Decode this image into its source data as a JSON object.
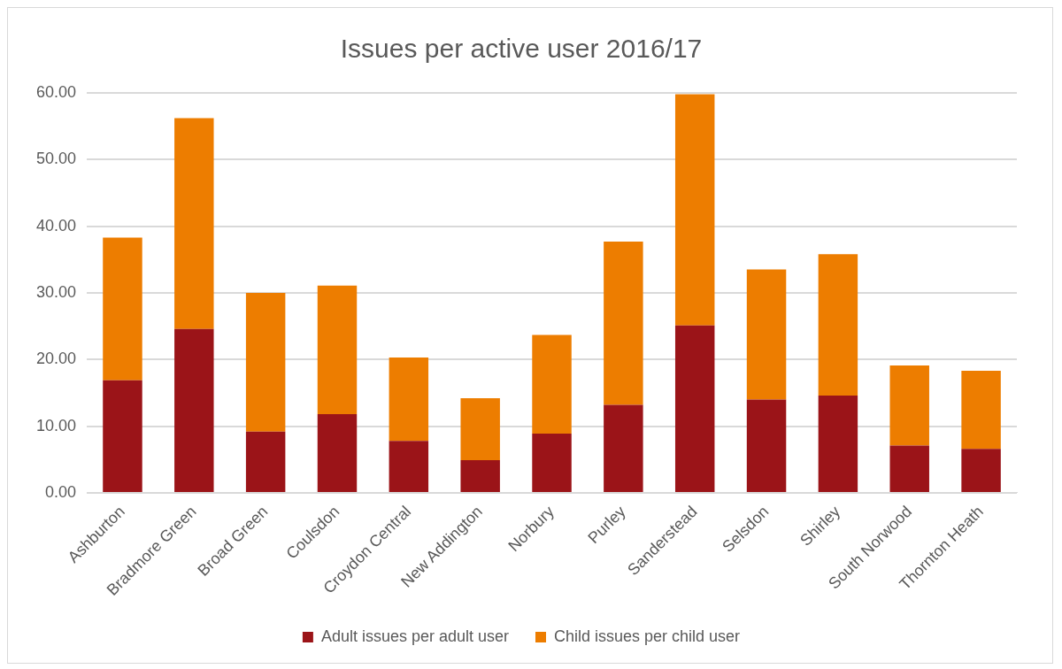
{
  "chart_data": {
    "type": "bar",
    "title": "Issues per active user 2016/17",
    "stacked": true,
    "categories": [
      "Ashburton",
      "Bradmore Green",
      "Broad Green",
      "Coulsdon",
      "Croydon Central",
      "New Addington",
      "Norbury",
      "Purley",
      "Sanderstead",
      "Selsdon",
      "Shirley",
      "South Norwood",
      "Thornton Heath"
    ],
    "series": [
      {
        "name": "Adult issues per adult user",
        "color": "#9b1418",
        "values": [
          16.9,
          24.6,
          9.2,
          11.8,
          7.8,
          4.9,
          8.9,
          13.2,
          25.1,
          14.0,
          14.6,
          7.1,
          6.6
        ]
      },
      {
        "name": "Child issues per child user",
        "color": "#ed7d00",
        "values": [
          21.4,
          31.6,
          20.8,
          19.3,
          12.5,
          9.3,
          14.8,
          24.5,
          34.7,
          19.5,
          21.2,
          12.0,
          11.7
        ]
      }
    ],
    "ylim": [
      0,
      60
    ],
    "yticks": [
      {
        "value": 0,
        "label": "0.00"
      },
      {
        "value": 10,
        "label": "10.00"
      },
      {
        "value": 20,
        "label": "20.00"
      },
      {
        "value": 30,
        "label": "30.00"
      },
      {
        "value": 40,
        "label": "40.00"
      },
      {
        "value": 50,
        "label": "50.00"
      },
      {
        "value": 60,
        "label": "60.00"
      }
    ],
    "grid": "y",
    "legend": "bottom"
  }
}
